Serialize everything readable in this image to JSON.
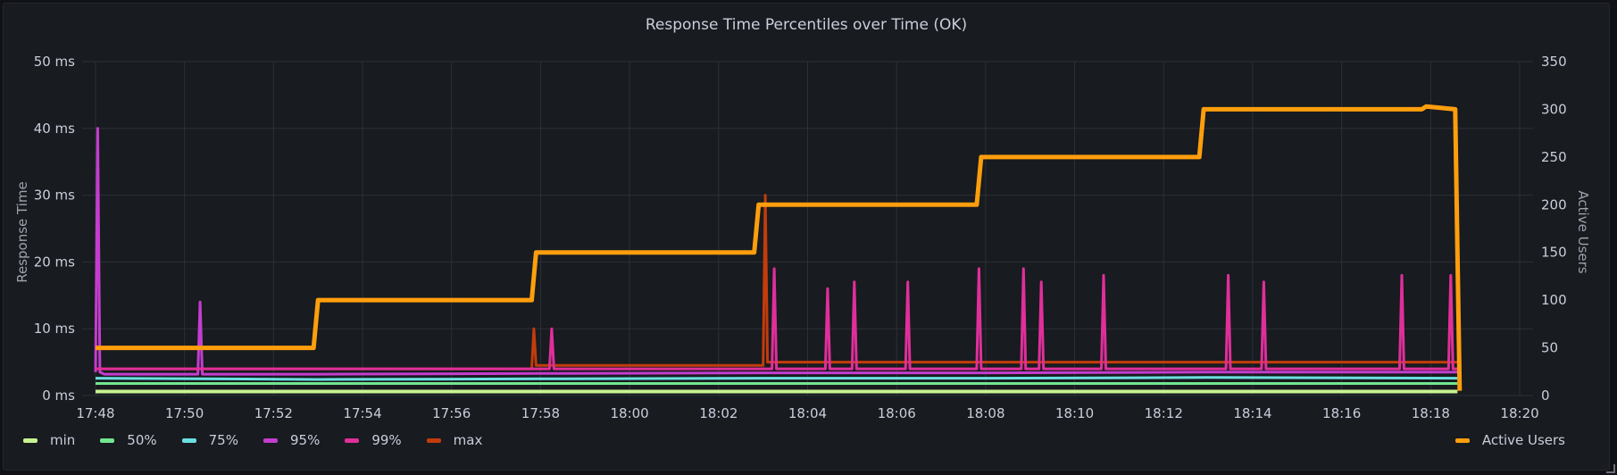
{
  "chart_data": {
    "type": "line",
    "title": "Response Time Percentiles over Time (OK)",
    "ylabel_left": "Response Time",
    "ylabel_right": "Active Users",
    "ylim_left": [
      0,
      50
    ],
    "ylim_right": [
      0,
      350
    ],
    "left_ticks": [
      "0 ms",
      "10 ms",
      "20 ms",
      "30 ms",
      "40 ms",
      "50 ms"
    ],
    "right_ticks": [
      "0",
      "50",
      "100",
      "150",
      "200",
      "250",
      "300",
      "350"
    ],
    "x_range_minutes": [
      -0.3,
      32.3
    ],
    "x_ticks": [
      "17:48",
      "17:50",
      "17:52",
      "17:54",
      "17:56",
      "17:58",
      "18:00",
      "18:02",
      "18:04",
      "18:06",
      "18:08",
      "18:10",
      "18:12",
      "18:14",
      "18:16",
      "18:18",
      "18:20"
    ],
    "grid": true,
    "legend_position": "bottom",
    "series": [
      {
        "name": "min",
        "color": "#c8f291",
        "axis": "left",
        "x": [
          0.0,
          30.6
        ],
        "values": [
          0.6,
          0.6
        ]
      },
      {
        "name": "50%",
        "color": "#73e68f",
        "axis": "left",
        "x": [
          0.0,
          30.6
        ],
        "values": [
          1.8,
          1.8
        ]
      },
      {
        "name": "75%",
        "color": "#6ae0e0",
        "axis": "left",
        "x": [
          0.0,
          5.0,
          10.0,
          15.0,
          20.0,
          25.0,
          30.6
        ],
        "values": [
          2.6,
          2.4,
          2.5,
          2.6,
          2.6,
          2.7,
          2.6
        ]
      },
      {
        "name": "95%",
        "color": "#c43dcf",
        "axis": "left",
        "x": [
          0.0,
          0.05,
          0.1,
          0.2,
          2.3,
          2.35,
          2.4,
          5.0,
          10.0,
          15.0,
          20.0,
          25.0,
          30.6
        ],
        "values": [
          3.5,
          40.0,
          3.5,
          3.2,
          3.2,
          14.0,
          3.2,
          3.2,
          3.3,
          3.4,
          3.4,
          3.5,
          3.5
        ]
      },
      {
        "name": "99%",
        "color": "#e02f9b",
        "axis": "left",
        "x": [
          0.0,
          10.2,
          10.25,
          10.3,
          15.2,
          15.25,
          15.3,
          16.4,
          16.45,
          16.5,
          17.0,
          17.05,
          17.1,
          18.2,
          18.25,
          18.3,
          19.8,
          19.85,
          19.9,
          20.8,
          20.85,
          20.9,
          21.2,
          21.25,
          21.3,
          22.6,
          22.65,
          22.7,
          25.4,
          25.45,
          25.5,
          26.2,
          26.25,
          26.3,
          29.3,
          29.35,
          29.4,
          30.4,
          30.45,
          30.5,
          30.6
        ],
        "values": [
          4.0,
          4.0,
          10.0,
          4.0,
          4.0,
          19.0,
          4.0,
          4.0,
          16.0,
          4.0,
          4.0,
          17.0,
          4.0,
          4.0,
          17.0,
          4.0,
          4.0,
          19.0,
          4.0,
          4.0,
          19.0,
          4.0,
          4.0,
          17.0,
          4.0,
          4.0,
          18.0,
          4.0,
          4.0,
          18.0,
          4.0,
          4.0,
          17.0,
          4.0,
          4.0,
          18.0,
          4.0,
          4.0,
          18.0,
          4.0,
          4.0
        ]
      },
      {
        "name": "max",
        "color": "#c23c0c",
        "axis": "left",
        "x": [
          0.0,
          9.8,
          9.85,
          9.9,
          15.0,
          15.05,
          15.1,
          30.6
        ],
        "values": [
          4.0,
          4.0,
          10.0,
          4.5,
          4.5,
          30.0,
          5.0,
          5.0
        ]
      },
      {
        "name": "Active Users",
        "color": "#ff9e0d",
        "axis": "right",
        "x": [
          0.0,
          4.9,
          5.0,
          9.8,
          9.9,
          14.8,
          14.9,
          19.8,
          19.9,
          24.8,
          24.9,
          29.8,
          29.9,
          30.55,
          30.6,
          30.65
        ],
        "values": [
          50,
          50,
          100,
          100,
          150,
          150,
          200,
          200,
          250,
          250,
          300,
          300,
          303,
          300,
          150,
          5
        ]
      }
    ]
  }
}
